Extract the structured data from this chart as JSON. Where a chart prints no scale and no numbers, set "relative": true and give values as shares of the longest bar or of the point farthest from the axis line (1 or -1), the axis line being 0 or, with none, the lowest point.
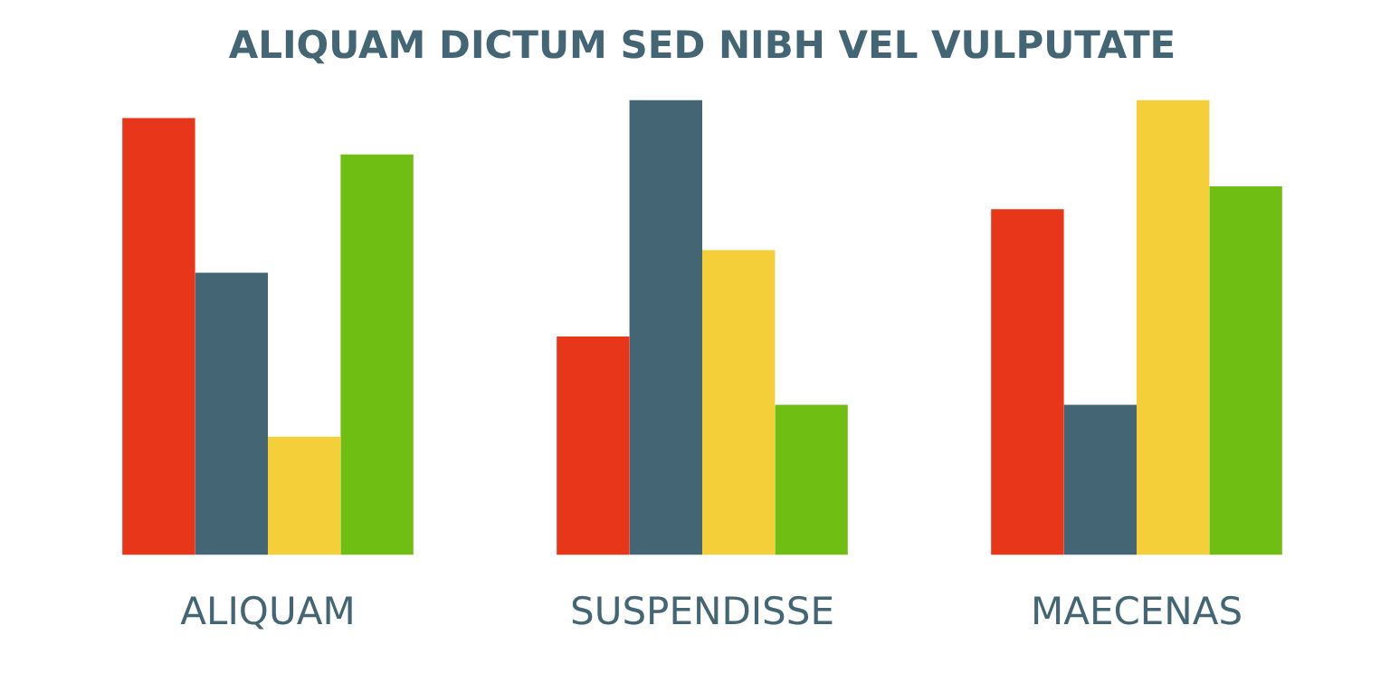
{
  "chart_data": {
    "type": "bar",
    "title": "ALIQUAM DICTUM SED NIBH VEL VULPUTATE",
    "categories": [
      "ALIQUAM",
      "SUSPENDISSE",
      "MAECENAS"
    ],
    "relative": true,
    "legend": false,
    "grid": false,
    "series": [
      {
        "color": "#e8361a",
        "values": [
          0.96,
          0.48,
          0.76
        ]
      },
      {
        "color": "#446674",
        "values": [
          0.62,
          1,
          0.33
        ]
      },
      {
        "color": "#f5cf3a",
        "values": [
          0.26,
          0.67,
          1
        ]
      },
      {
        "color": "#6fbe13",
        "values": [
          0.88,
          0.33,
          0.81
        ]
      }
    ]
  }
}
